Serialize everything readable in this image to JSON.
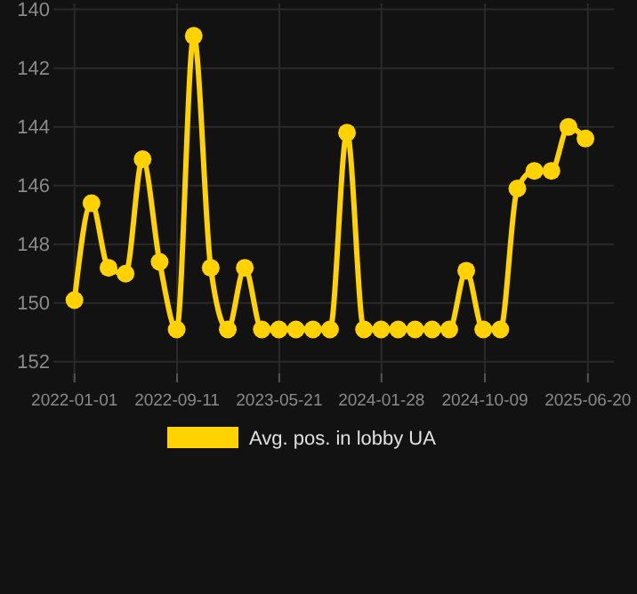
{
  "chart_data": {
    "type": "line",
    "x": [
      "2022-01-01",
      "2022-02-12",
      "2022-03-26",
      "2022-05-07",
      "2022-06-18",
      "2022-07-30",
      "2022-09-10",
      "2022-10-22",
      "2022-12-03",
      "2023-01-14",
      "2023-02-25",
      "2023-04-08",
      "2023-05-20",
      "2023-07-01",
      "2023-08-12",
      "2023-09-23",
      "2023-11-04",
      "2023-12-16",
      "2024-01-27",
      "2024-03-09",
      "2024-04-20",
      "2024-06-01",
      "2024-07-13",
      "2024-08-24",
      "2024-10-05",
      "2024-11-16",
      "2024-12-28",
      "2025-02-08",
      "2025-03-22",
      "2025-05-03",
      "2025-06-14"
    ],
    "series": [
      {
        "name": "Avg. pos. in lobby UA",
        "color": "#ffd200",
        "values": [
          149.9,
          146.6,
          148.8,
          149.0,
          145.1,
          148.6,
          150.9,
          140.9,
          148.8,
          150.9,
          148.8,
          150.9,
          150.9,
          150.9,
          150.9,
          150.9,
          144.2,
          150.9,
          150.9,
          150.9,
          150.9,
          150.9,
          150.9,
          148.9,
          150.9,
          150.9,
          146.1,
          145.5,
          145.5,
          144.0,
          144.4
        ]
      }
    ],
    "xlim": [
      "2021-11-10",
      "2025-08-23"
    ],
    "xticks": [
      "2022-01-01",
      "2022-09-11",
      "2023-05-21",
      "2024-01-28",
      "2024-10-09",
      "2025-06-20"
    ],
    "ylim": [
      152.4,
      139.8
    ],
    "yticks": [
      140,
      142,
      144,
      146,
      148,
      150,
      152
    ],
    "grid": true,
    "legend": "bottom",
    "marker": "circle",
    "line_style": "solid"
  }
}
